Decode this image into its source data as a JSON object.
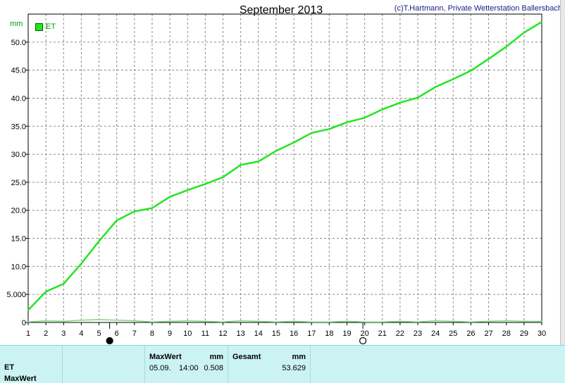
{
  "header": {
    "title": "September 2013",
    "copyright": "(c)T.Hartmann, Private Wetterstation Ballersbach",
    "unit": "mm"
  },
  "legend": {
    "label": "ET",
    "color": "#22e522"
  },
  "chart_data": {
    "type": "line",
    "title": "September 2013",
    "ylabel": "mm",
    "xlim": [
      1,
      30
    ],
    "ylim": [
      0,
      55
    ],
    "grid": true,
    "legend": "top-left",
    "x_ticks": [
      1,
      2,
      3,
      4,
      5,
      6,
      7,
      8,
      9,
      10,
      11,
      12,
      13,
      14,
      15,
      16,
      17,
      18,
      19,
      20,
      21,
      22,
      23,
      24,
      25,
      26,
      27,
      28,
      29,
      30
    ],
    "y_ticks": [
      0,
      5,
      10,
      15,
      20,
      25,
      30,
      35,
      40,
      45,
      50
    ],
    "y_tick_labels": [
      "0",
      "5.000",
      "10.0",
      "15.0",
      "20.0",
      "25.0",
      "30.0",
      "35.0",
      "40.0",
      "45.0",
      "50.0"
    ],
    "series": [
      {
        "name": "ET",
        "color": "#22e522",
        "x": [
          1,
          2,
          3,
          4,
          5,
          6,
          7,
          8,
          9,
          10,
          11,
          12,
          13,
          14,
          15,
          16,
          17,
          18,
          19,
          20,
          21,
          22,
          23,
          24,
          25,
          26,
          27,
          28,
          29,
          30
        ],
        "values": [
          2.2,
          5.5,
          6.9,
          10.5,
          14.5,
          18.2,
          19.8,
          20.4,
          22.4,
          23.6,
          24.7,
          25.9,
          28.1,
          28.7,
          30.6,
          32.1,
          33.8,
          34.5,
          35.7,
          36.5,
          38.0,
          39.2,
          40.1,
          42.0,
          43.4,
          44.9,
          47.0,
          49.2,
          51.7,
          53.6
        ]
      },
      {
        "name": "",
        "color": "#7ed87e",
        "x": [
          1,
          2,
          3,
          4,
          5,
          6,
          7,
          8,
          9,
          10,
          11,
          12,
          13,
          14,
          15,
          16,
          17,
          18,
          19,
          20,
          21,
          22,
          23,
          24,
          25,
          26,
          27,
          28,
          29,
          30
        ],
        "values": [
          0.1,
          0.3,
          0.2,
          0.4,
          0.5,
          0.4,
          0.3,
          0.1,
          0.2,
          0.3,
          0.2,
          0.1,
          0.3,
          0.2,
          0.1,
          0.2,
          0.1,
          0.1,
          0.2,
          0.1,
          0.1,
          0.2,
          0.1,
          0.3,
          0.2,
          0.1,
          0.2,
          0.3,
          0.2,
          0.2
        ]
      }
    ],
    "moon_phases": [
      {
        "x": 5.6,
        "phase": "new-moon"
      },
      {
        "x": 19.9,
        "phase": "full-moon"
      }
    ]
  },
  "table": {
    "row_labels": [
      "ET",
      "MaxWert"
    ],
    "maxwert_header": "MaxWert",
    "maxwert_unit": "mm",
    "maxwert_date": "05.09.",
    "maxwert_time": "14:00",
    "maxwert_value": "0.508",
    "gesamt_header": "Gesamt",
    "gesamt_unit": "mm",
    "gesamt_value": "53.629"
  }
}
